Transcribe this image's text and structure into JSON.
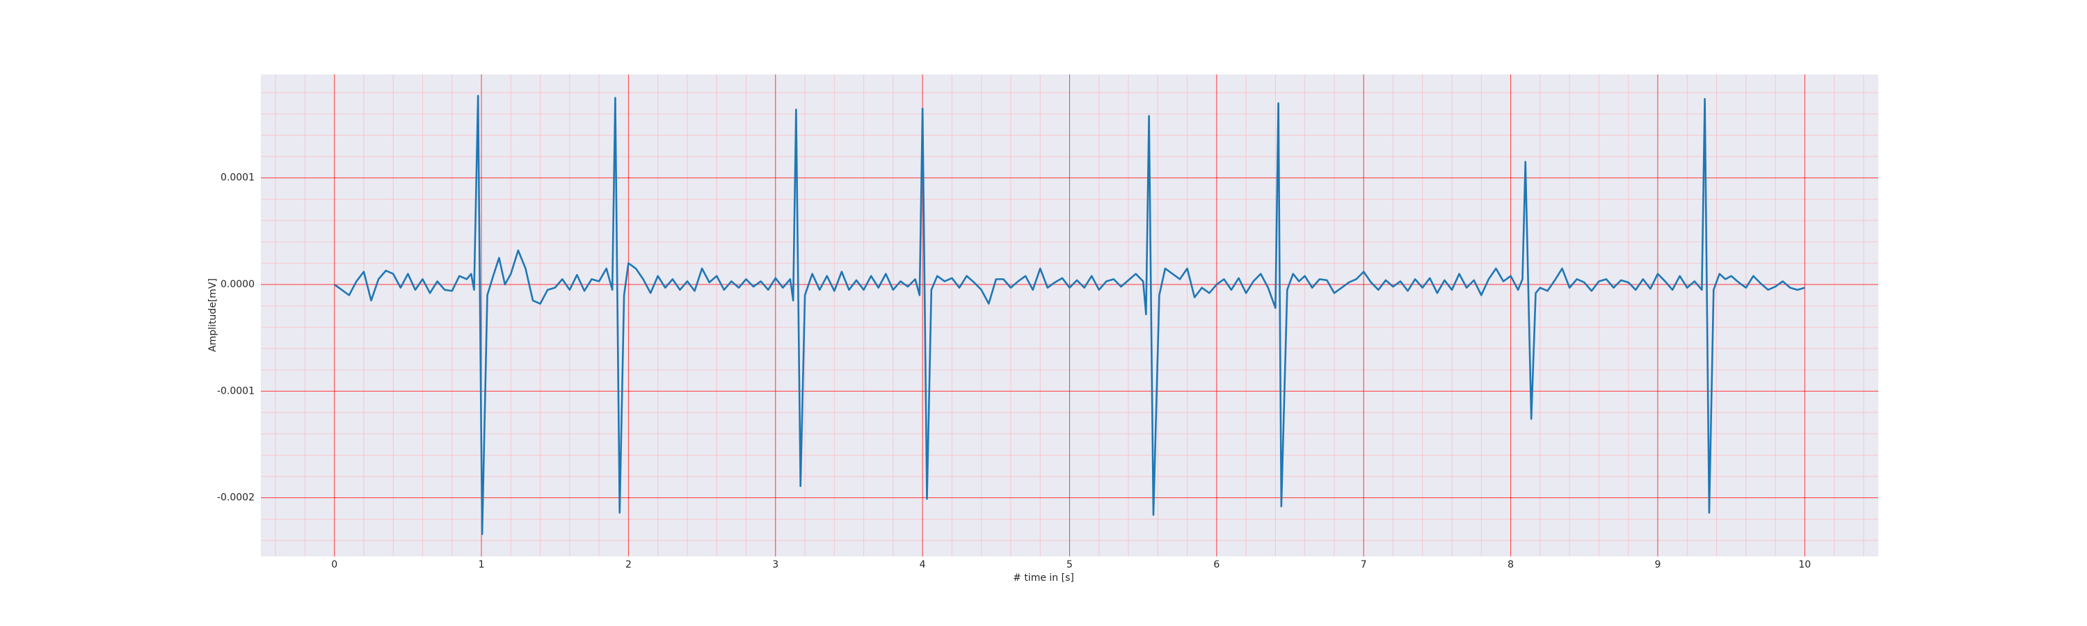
{
  "chart_data": {
    "type": "line",
    "xlabel": "# time in [s]",
    "ylabel": "Amplitude[mV]",
    "color": "#1f77b4",
    "grid": true,
    "minor_grid": true,
    "xlim": [
      -0.5,
      10.5
    ],
    "xticks": [
      0,
      1,
      2,
      3,
      4,
      5,
      6,
      7,
      8,
      9,
      10
    ],
    "ylim": [
      -0.000255,
      0.000197
    ],
    "yticks": [
      0.0001,
      {
        "value": 0,
        "label": "0.0000"
      },
      -0.0001,
      -0.0002
    ],
    "x": [
      0.0,
      0.05,
      0.1,
      0.15,
      0.2,
      0.25,
      0.3,
      0.35,
      0.4,
      0.45,
      0.5,
      0.55,
      0.6,
      0.65,
      0.7,
      0.75,
      0.8,
      0.85,
      0.9,
      0.93,
      0.95,
      0.977,
      1.005,
      1.04,
      1.08,
      1.12,
      1.16,
      1.2,
      1.25,
      1.3,
      1.35,
      1.4,
      1.45,
      1.5,
      1.55,
      1.6,
      1.65,
      1.7,
      1.75,
      1.8,
      1.85,
      1.89,
      1.91,
      1.94,
      1.97,
      2.0,
      2.05,
      2.1,
      2.15,
      2.2,
      2.25,
      2.3,
      2.35,
      2.4,
      2.45,
      2.5,
      2.55,
      2.6,
      2.65,
      2.7,
      2.75,
      2.8,
      2.85,
      2.9,
      2.95,
      3.0,
      3.05,
      3.1,
      3.12,
      3.14,
      3.17,
      3.2,
      3.25,
      3.3,
      3.35,
      3.4,
      3.45,
      3.5,
      3.55,
      3.6,
      3.65,
      3.7,
      3.75,
      3.8,
      3.85,
      3.9,
      3.95,
      3.98,
      4.0,
      4.03,
      4.06,
      4.1,
      4.15,
      4.2,
      4.25,
      4.3,
      4.35,
      4.4,
      4.45,
      4.5,
      4.55,
      4.6,
      4.65,
      4.7,
      4.75,
      4.8,
      4.85,
      4.9,
      4.95,
      5.0,
      5.05,
      5.1,
      5.15,
      5.2,
      5.25,
      5.3,
      5.35,
      5.4,
      5.45,
      5.5,
      5.52,
      5.54,
      5.57,
      5.61,
      5.65,
      5.7,
      5.75,
      5.8,
      5.85,
      5.9,
      5.95,
      6.0,
      6.05,
      6.1,
      6.15,
      6.2,
      6.25,
      6.3,
      6.35,
      6.4,
      6.42,
      6.44,
      6.48,
      6.52,
      6.56,
      6.6,
      6.65,
      6.7,
      6.75,
      6.8,
      6.85,
      6.9,
      6.95,
      7.0,
      7.05,
      7.1,
      7.15,
      7.2,
      7.25,
      7.3,
      7.35,
      7.4,
      7.45,
      7.5,
      7.55,
      7.6,
      7.65,
      7.7,
      7.75,
      7.8,
      7.85,
      7.9,
      7.95,
      8.0,
      8.05,
      8.08,
      8.1,
      8.14,
      8.17,
      8.2,
      8.25,
      8.3,
      8.35,
      8.4,
      8.45,
      8.5,
      8.55,
      8.6,
      8.65,
      8.7,
      8.75,
      8.8,
      8.85,
      8.9,
      8.95,
      9.0,
      9.05,
      9.1,
      9.15,
      9.2,
      9.25,
      9.3,
      9.32,
      9.35,
      9.38,
      9.42,
      9.46,
      9.5,
      9.55,
      9.6,
      9.65,
      9.7,
      9.75,
      9.8,
      9.85,
      9.9,
      9.95,
      10.0
    ],
    "values": [
      0,
      -5e-06,
      -1e-05,
      3e-06,
      1.2e-05,
      -1.5e-05,
      5e-06,
      1.3e-05,
      1e-05,
      -3e-06,
      1e-05,
      -5e-06,
      5e-06,
      -8e-06,
      3e-06,
      -5e-06,
      -6e-06,
      8e-06,
      5e-06,
      1e-05,
      -5e-06,
      0.000177,
      -0.000234,
      -1e-05,
      8e-06,
      2.5e-05,
      0,
      1e-05,
      3.2e-05,
      1.5e-05,
      -1.5e-05,
      -1.8e-05,
      -5e-06,
      -3e-06,
      5e-06,
      -5e-06,
      9e-06,
      -6e-06,
      5e-06,
      3e-06,
      1.5e-05,
      -5e-06,
      0.000175,
      -0.000214,
      -1e-05,
      2e-05,
      1.5e-05,
      5e-06,
      -8e-06,
      8e-06,
      -3e-06,
      5e-06,
      -5e-06,
      3e-06,
      -6e-06,
      1.5e-05,
      2e-06,
      8e-06,
      -5e-06,
      3e-06,
      -3e-06,
      5e-06,
      -2e-06,
      3e-06,
      -5e-06,
      6e-06,
      -3e-06,
      5e-06,
      -1.5e-05,
      0.000164,
      -0.000189,
      -1e-05,
      1e-05,
      -5e-06,
      8e-06,
      -6e-06,
      1.2e-05,
      -5e-06,
      4e-06,
      -5e-06,
      8e-06,
      -3e-06,
      1e-05,
      -5e-06,
      3e-06,
      -2e-06,
      5e-06,
      -1e-05,
      0.000165,
      -0.000201,
      -5e-06,
      8e-06,
      3e-06,
      6e-06,
      -3e-06,
      8e-06,
      2e-06,
      -5e-06,
      -1.8e-05,
      5e-06,
      5e-06,
      -3e-06,
      3e-06,
      8e-06,
      -5e-06,
      1.5e-05,
      -3e-06,
      2e-06,
      6e-06,
      -3e-06,
      4e-06,
      -3e-06,
      8e-06,
      -5e-06,
      3e-06,
      5e-06,
      -2e-06,
      4e-06,
      1e-05,
      3e-06,
      -2.8e-05,
      0.000158,
      -0.000216,
      -1e-05,
      1.5e-05,
      1e-05,
      5e-06,
      1.5e-05,
      -1.2e-05,
      -3e-06,
      -8e-06,
      0,
      5e-06,
      -5e-06,
      6e-06,
      -8e-06,
      3e-06,
      1e-05,
      -3e-06,
      -2.2e-05,
      0.00017,
      -0.000208,
      -5e-06,
      1e-05,
      3e-06,
      8e-06,
      -3e-06,
      5e-06,
      4e-06,
      -8e-06,
      -3e-06,
      2e-06,
      5e-06,
      1.2e-05,
      2e-06,
      -5e-06,
      4e-06,
      -2e-06,
      3e-06,
      -6e-06,
      5e-06,
      -3e-06,
      6e-06,
      -8e-06,
      4e-06,
      -5e-06,
      1e-05,
      -3e-06,
      4e-06,
      -1e-05,
      5e-06,
      1.5e-05,
      3e-06,
      8e-06,
      -5e-06,
      5e-06,
      0.000115,
      -0.000126,
      -8e-06,
      -3e-06,
      -6e-06,
      4e-06,
      1.5e-05,
      -3e-06,
      5e-06,
      2e-06,
      -6e-06,
      3e-06,
      5e-06,
      -3e-06,
      4e-06,
      2e-06,
      -5e-06,
      5e-06,
      -4e-06,
      1e-05,
      3e-06,
      -5e-06,
      8e-06,
      -3e-06,
      3e-06,
      -5e-06,
      0.000174,
      -0.000214,
      -5e-06,
      1e-05,
      5e-06,
      8e-06,
      2e-06,
      -3e-06,
      8e-06,
      1e-06,
      -5e-06,
      -2e-06,
      3e-06,
      -3e-06,
      -5e-06,
      -3e-06
    ]
  }
}
